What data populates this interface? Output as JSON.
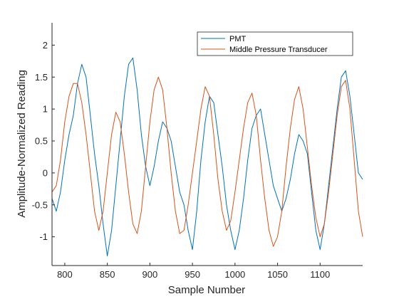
{
  "chart_data": {
    "type": "line",
    "xlabel": "Sample Number",
    "ylabel": "Amplitude-Normalized Reading",
    "xlim": [
      785,
      1150
    ],
    "ylim": [
      -1.45,
      2.35
    ],
    "xticks": [
      800,
      850,
      900,
      950,
      1000,
      1050,
      1100
    ],
    "yticks": [
      -1,
      -0.5,
      0,
      0.5,
      1,
      1.5,
      2
    ],
    "xtick_labels": [
      "800",
      "850",
      "900",
      "950",
      "1000",
      "1050",
      "1100"
    ],
    "ytick_labels": [
      "-1",
      "-0.5",
      "0",
      "0.5",
      "1",
      "1.5",
      "2"
    ],
    "grid": false,
    "legend_position": "top-right",
    "series": [
      {
        "name": "PMT",
        "color": "#0072BD",
        "x": [
          785,
          790,
          795,
          800,
          805,
          810,
          815,
          820,
          825,
          830,
          835,
          840,
          845,
          850,
          855,
          860,
          865,
          870,
          875,
          880,
          885,
          890,
          895,
          900,
          905,
          910,
          915,
          920,
          925,
          930,
          935,
          940,
          945,
          950,
          955,
          960,
          965,
          970,
          975,
          980,
          985,
          990,
          995,
          1000,
          1005,
          1010,
          1015,
          1020,
          1025,
          1030,
          1035,
          1040,
          1045,
          1050,
          1055,
          1060,
          1065,
          1070,
          1075,
          1080,
          1085,
          1090,
          1095,
          1100,
          1105,
          1110,
          1115,
          1120,
          1125,
          1130,
          1135,
          1140,
          1145,
          1150
        ],
        "y": [
          -0.4,
          -0.6,
          -0.3,
          0.2,
          0.6,
          0.9,
          1.4,
          1.7,
          1.5,
          0.9,
          0.3,
          -0.2,
          -0.8,
          -1.3,
          -0.9,
          -0.2,
          0.5,
          1.2,
          1.7,
          1.8,
          1.3,
          0.6,
          0.1,
          -0.2,
          0.1,
          0.5,
          0.8,
          0.7,
          0.5,
          0.1,
          -0.3,
          -0.5,
          -0.9,
          -1.2,
          -0.6,
          0.2,
          0.8,
          1.2,
          1.1,
          0.6,
          0.1,
          -0.5,
          -0.9,
          -1.2,
          -0.9,
          -0.4,
          0.2,
          0.7,
          0.9,
          1.0,
          0.6,
          0.2,
          -0.2,
          -0.4,
          -0.6,
          -0.4,
          -0.1,
          0.3,
          0.6,
          0.5,
          0.3,
          -0.3,
          -0.9,
          -1.2,
          -0.8,
          -0.2,
          0.4,
          1.0,
          1.5,
          1.6,
          1.2,
          0.6,
          0.0,
          -0.1
        ]
      },
      {
        "name": "Middle Pressure Transducer",
        "color": "#D95319",
        "x": [
          785,
          790,
          795,
          800,
          805,
          810,
          815,
          820,
          825,
          830,
          835,
          840,
          845,
          850,
          855,
          860,
          865,
          870,
          875,
          880,
          885,
          890,
          895,
          900,
          905,
          910,
          915,
          920,
          925,
          930,
          935,
          940,
          945,
          950,
          955,
          960,
          965,
          970,
          975,
          980,
          985,
          990,
          995,
          1000,
          1005,
          1010,
          1015,
          1020,
          1025,
          1030,
          1035,
          1040,
          1045,
          1050,
          1055,
          1060,
          1065,
          1070,
          1075,
          1080,
          1085,
          1090,
          1095,
          1100,
          1105,
          1110,
          1115,
          1120,
          1125,
          1130,
          1135,
          1140,
          1145,
          1150
        ],
        "y": [
          -0.3,
          -0.2,
          0.2,
          0.8,
          1.2,
          1.4,
          1.4,
          1.1,
          0.6,
          0.0,
          -0.6,
          -0.9,
          -0.6,
          0.0,
          0.6,
          0.95,
          0.8,
          0.3,
          -0.3,
          -0.8,
          -0.95,
          -0.6,
          0.1,
          0.8,
          1.3,
          1.5,
          1.3,
          0.7,
          0.0,
          -0.6,
          -0.95,
          -0.9,
          -0.5,
          0.0,
          0.5,
          1.0,
          1.35,
          1.2,
          0.6,
          -0.1,
          -0.6,
          -0.9,
          -0.75,
          -0.3,
          0.2,
          0.7,
          1.1,
          1.25,
          0.9,
          0.2,
          -0.4,
          -0.9,
          -1.15,
          -1.0,
          -0.6,
          0.1,
          0.7,
          1.15,
          1.35,
          1.0,
          0.4,
          -0.2,
          -0.7,
          -1.0,
          -0.8,
          -0.3,
          0.3,
          0.9,
          1.35,
          1.45,
          1.0,
          0.2,
          -0.6,
          -1.0
        ]
      }
    ]
  }
}
